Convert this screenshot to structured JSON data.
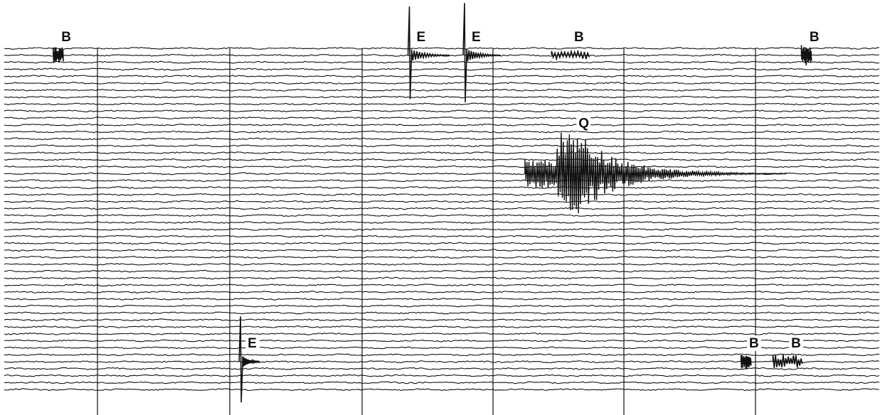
{
  "chart_data": {
    "type": "seismogram",
    "title": "",
    "trace_count": 50,
    "minute_marks": 6,
    "trace_color": "#111111",
    "background": "#ffffff",
    "grid": "vertical minute marks",
    "events": [
      {
        "label": "B",
        "trace": 1,
        "column": 0.062,
        "kind": "burst",
        "amplitude": 2.5,
        "duration": 0.012
      },
      {
        "label": "E",
        "trace": 1,
        "column": 0.463,
        "kind": "spike",
        "amplitude": 7.0,
        "duration": 0.045
      },
      {
        "label": "E",
        "trace": 1,
        "column": 0.526,
        "kind": "spike",
        "amplitude": 7.5,
        "duration": 0.04
      },
      {
        "label": "B",
        "trace": 1,
        "column": 0.648,
        "kind": "burst",
        "amplitude": 1.2,
        "duration": 0.045
      },
      {
        "label": "B",
        "trace": 1,
        "column": 0.917,
        "kind": "burst",
        "amplitude": 3.0,
        "duration": 0.012
      },
      {
        "label": "Q",
        "trace": 18,
        "column": 0.64,
        "kind": "quake",
        "amplitude": 12.0,
        "duration": 0.3
      },
      {
        "label": "E",
        "trace": 45,
        "column": 0.27,
        "kind": "spike",
        "amplitude": 6.5,
        "duration": 0.02
      },
      {
        "label": "B",
        "trace": 45,
        "column": 0.848,
        "kind": "burst",
        "amplitude": 2.0,
        "duration": 0.012
      },
      {
        "label": "B",
        "trace": 45,
        "column": 0.896,
        "kind": "burst",
        "amplitude": 2.0,
        "duration": 0.035
      }
    ]
  }
}
